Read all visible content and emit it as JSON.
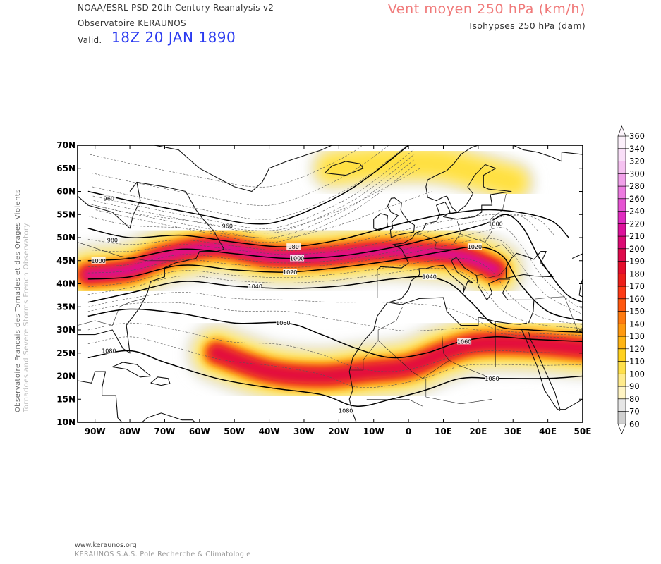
{
  "header": {
    "source_line_1": "NOAA/ESRL PSD 20th Century Reanalysis v2",
    "source_line_2": "Observatoire KERAUNOS",
    "valid_label": "Valid.",
    "valid_value": "18Z 20 JAN 1890",
    "title": "Vent moyen 250 hPa (km/h)",
    "subtitle": "Isohypses 250 hPa (dam)"
  },
  "side_text": {
    "line_1": "Observatoire Francais des Tornades et des Orages Violents",
    "line_2": "Tornadoes and Severe Storms French Observatory"
  },
  "footer": {
    "line_1": "www.keraunos.org",
    "line_2": "KERAUNOS S.A.S. Pole Recherche & Climatologie"
  },
  "map": {
    "lat_labels": [
      "70N",
      "65N",
      "60N",
      "55N",
      "50N",
      "45N",
      "40N",
      "35N",
      "30N",
      "25N",
      "20N",
      "15N",
      "10N"
    ],
    "lon_labels": [
      "90W",
      "80W",
      "70W",
      "60W",
      "50W",
      "40W",
      "30W",
      "20W",
      "10W",
      "0",
      "10E",
      "20E",
      "30E",
      "40E",
      "50E"
    ],
    "isohypse_labels": [
      {
        "text": "960",
        "lon": -86,
        "lat": 58.5
      },
      {
        "text": "960",
        "lon": -52,
        "lat": 52.5
      },
      {
        "text": "980",
        "lon": -85,
        "lat": 49.5
      },
      {
        "text": "980",
        "lon": -33,
        "lat": 48
      },
      {
        "text": "1000",
        "lon": -89,
        "lat": 45
      },
      {
        "text": "1000",
        "lon": -32,
        "lat": 45.5
      },
      {
        "text": "1000",
        "lon": 25,
        "lat": 53
      },
      {
        "text": "1020",
        "lon": -34,
        "lat": 42.5
      },
      {
        "text": "1020",
        "lon": 19,
        "lat": 48
      },
      {
        "text": "1040",
        "lon": -44,
        "lat": 39.5
      },
      {
        "text": "1040",
        "lon": 6,
        "lat": 41.5
      },
      {
        "text": "1060",
        "lon": -36,
        "lat": 31.5
      },
      {
        "text": "1060",
        "lon": 16,
        "lat": 27.5
      },
      {
        "text": "1080",
        "lon": -86,
        "lat": 25.5
      },
      {
        "text": "1080",
        "lon": 24,
        "lat": 19.5
      },
      {
        "text": "1080",
        "lon": -18,
        "lat": 12.5
      }
    ]
  },
  "colorbar": {
    "labels": [
      "60",
      "70",
      "80",
      "90",
      "100",
      "110",
      "120",
      "130",
      "140",
      "150",
      "160",
      "170",
      "180",
      "190",
      "200",
      "210",
      "220",
      "240",
      "260",
      "280",
      "300",
      "320",
      "340",
      "360"
    ],
    "colors": [
      "#d0d0d0",
      "#e6e6e6",
      "#fff4c4",
      "#ffeb8c",
      "#ffe04a",
      "#ffd11e",
      "#ffb514",
      "#ff990f",
      "#ff7a0f",
      "#ff570f",
      "#fe3a16",
      "#ed1f1a",
      "#e50e2c",
      "#de0a4c",
      "#dc0a74",
      "#dd119b",
      "#e02cc0",
      "#e654d3",
      "#ec7be0",
      "#f1a0ea",
      "#f5c2f1",
      "#f9dff8",
      "#fcf0fb"
    ]
  },
  "chart_data": {
    "type": "heatmap",
    "title": "Vent moyen 250 hPa (km/h)",
    "subtitle": "Isohypses 250 hPa (dam)",
    "xlim": [
      -95,
      50
    ],
    "ylim": [
      10,
      70
    ],
    "jets": [
      {
        "points": [
          [
            -92,
            42
          ],
          [
            -80,
            43
          ],
          [
            -70,
            46
          ],
          [
            -55,
            48
          ],
          [
            -40,
            46
          ],
          [
            -25,
            46
          ],
          [
            -10,
            47
          ],
          [
            0,
            47
          ],
          [
            15,
            46
          ],
          [
            25,
            43
          ]
        ],
        "core_kmh": 230
      },
      {
        "points": [
          [
            -55,
            25
          ],
          [
            -40,
            21
          ],
          [
            -25,
            20
          ],
          [
            -12,
            21
          ],
          [
            0,
            22
          ],
          [
            10,
            25
          ],
          [
            20,
            27
          ],
          [
            35,
            27
          ],
          [
            50,
            26
          ]
        ],
        "core_kmh": 200
      },
      {
        "points": [
          [
            -22,
            65
          ],
          [
            -8,
            66
          ],
          [
            8,
            66
          ],
          [
            20,
            64
          ],
          [
            30,
            62
          ]
        ],
        "core_kmh": 120
      }
    ],
    "isohypses_dam": [
      {
        "level": "960",
        "points": [
          [
            -92,
            60
          ],
          [
            -80,
            58
          ],
          [
            -60,
            55
          ],
          [
            -45,
            53
          ],
          [
            -35,
            54
          ],
          [
            -20,
            59
          ],
          [
            -10,
            64
          ],
          [
            0,
            70
          ]
        ]
      },
      {
        "level": "980",
        "points": [
          [
            -92,
            52
          ],
          [
            -80,
            50
          ],
          [
            -65,
            50.5
          ],
          [
            -50,
            49
          ],
          [
            -35,
            48
          ],
          [
            -20,
            49.5
          ],
          [
            -5,
            52.5
          ],
          [
            10,
            55
          ],
          [
            25,
            56
          ],
          [
            40,
            54
          ],
          [
            46,
            50
          ]
        ]
      },
      {
        "level": "1000",
        "points": [
          [
            -92,
            45
          ],
          [
            -80,
            45.5
          ],
          [
            -65,
            47.5
          ],
          [
            -50,
            46.5
          ],
          [
            -35,
            45.5
          ],
          [
            -20,
            46
          ],
          [
            -5,
            47.8
          ],
          [
            10,
            50.5
          ],
          [
            22,
            53
          ],
          [
            28,
            55
          ],
          [
            33,
            52
          ],
          [
            38,
            45
          ],
          [
            45,
            38
          ],
          [
            50,
            36
          ]
        ]
      },
      {
        "level": "1020",
        "points": [
          [
            -92,
            41
          ],
          [
            -80,
            41.5
          ],
          [
            -65,
            44
          ],
          [
            -50,
            43
          ],
          [
            -35,
            42.5
          ],
          [
            -20,
            43.5
          ],
          [
            -5,
            45
          ],
          [
            10,
            47
          ],
          [
            20,
            48
          ],
          [
            27,
            46
          ],
          [
            32,
            40
          ],
          [
            40,
            34
          ],
          [
            50,
            32
          ]
        ]
      },
      {
        "level": "1040",
        "points": [
          [
            -92,
            36
          ],
          [
            -80,
            38
          ],
          [
            -65,
            40.5
          ],
          [
            -50,
            39.5
          ],
          [
            -35,
            39
          ],
          [
            -20,
            39.5
          ],
          [
            -5,
            41
          ],
          [
            5,
            41.5
          ],
          [
            12,
            40
          ],
          [
            18,
            36
          ],
          [
            25,
            31
          ],
          [
            35,
            30
          ],
          [
            50,
            29.5
          ]
        ]
      },
      {
        "level": "1060",
        "points": [
          [
            -92,
            33
          ],
          [
            -80,
            34.5
          ],
          [
            -65,
            33.5
          ],
          [
            -50,
            31.5
          ],
          [
            -35,
            31.5
          ],
          [
            -25,
            29
          ],
          [
            -15,
            26
          ],
          [
            -5,
            24
          ],
          [
            5,
            25
          ],
          [
            15,
            27.5
          ],
          [
            25,
            28.5
          ],
          [
            35,
            28
          ],
          [
            50,
            27.5
          ]
        ]
      },
      {
        "level": "1080",
        "points": [
          [
            -92,
            24
          ],
          [
            -80,
            25.5
          ],
          [
            -70,
            23
          ],
          [
            -55,
            19.5
          ],
          [
            -40,
            17.5
          ],
          [
            -25,
            16
          ],
          [
            -15,
            13.5
          ],
          [
            -5,
            15
          ],
          [
            5,
            17
          ],
          [
            15,
            19.5
          ],
          [
            25,
            19.5
          ],
          [
            40,
            19.5
          ],
          [
            50,
            20
          ]
        ]
      }
    ],
    "legend_location": "right"
  }
}
